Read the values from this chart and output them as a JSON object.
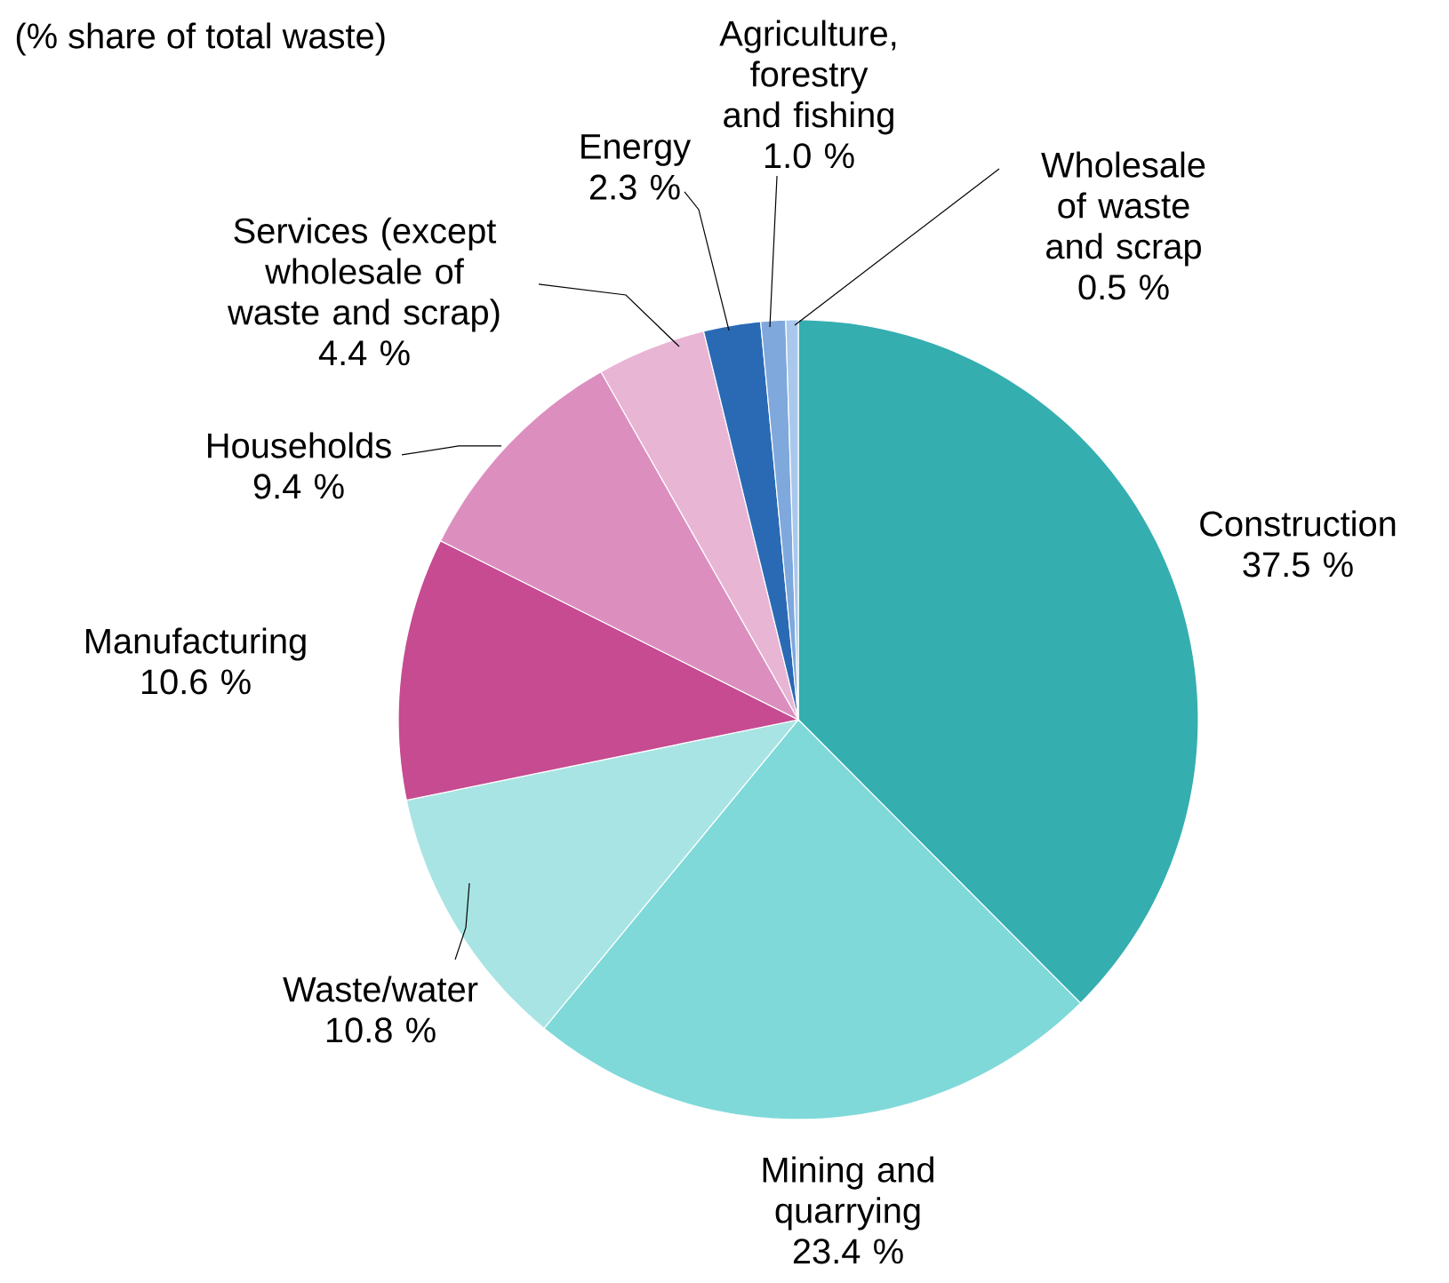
{
  "chart_data": {
    "type": "pie",
    "subtitle": "(% share of total waste)",
    "categories": [
      "Construction",
      "Mining and quarrying",
      "Waste/water",
      "Manufacturing",
      "Households",
      "Services (except wholesale of waste and scrap)",
      "Energy",
      "Agriculture, forestry and fishing",
      "Wholesale of waste and scrap"
    ],
    "values": [
      37.5,
      23.4,
      10.8,
      10.6,
      9.4,
      4.4,
      2.3,
      1.0,
      0.5
    ],
    "value_labels": [
      "37.5 %",
      "23.4 %",
      "10.8 %",
      "10.6 %",
      "9.4 %",
      "4.4 %",
      "2.3 %",
      "1.0 %",
      "0.5 %"
    ],
    "colors": [
      "#35aeb0",
      "#7fd9d9",
      "#a9e4e4",
      "#c64b91",
      "#dc8fbf",
      "#e9b5d5",
      "#2a6ab5",
      "#7fa8dc",
      "#aac8ec"
    ]
  }
}
